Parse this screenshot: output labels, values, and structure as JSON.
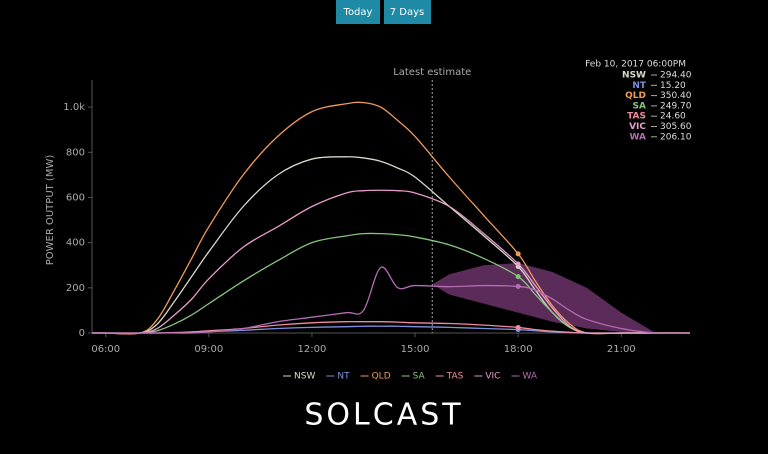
{
  "ui": {
    "buttons": [
      "Today",
      "7 Days"
    ],
    "logo": "SOLCAST"
  },
  "chart_data": {
    "type": "line",
    "y_label": "POWER OUTPUT (MW)",
    "annotation": {
      "x": 15.5,
      "label": "Latest estimate"
    },
    "x": [
      5.6,
      6,
      7,
      7.5,
      8,
      8.5,
      9,
      10,
      11,
      12,
      13,
      13.5,
      14,
      14.5,
      15,
      16,
      17,
      18,
      18.5,
      19,
      19.5,
      20,
      21,
      22,
      23
    ],
    "xlim": [
      5.6,
      23
    ],
    "xticks": [
      {
        "value": 6,
        "label": "06:00"
      },
      {
        "value": 9,
        "label": "09:00"
      },
      {
        "value": 12,
        "label": "12:00"
      },
      {
        "value": 15,
        "label": "15:00"
      },
      {
        "value": 18,
        "label": "18:00"
      },
      {
        "value": 21,
        "label": "21:00"
      }
    ],
    "ylim": [
      0,
      1120
    ],
    "yticks": [
      0,
      200,
      400,
      600,
      800,
      {
        "value": 1000,
        "label": "1.0k"
      }
    ],
    "series": [
      {
        "name": "NSW",
        "color": "#d8d8c8",
        "values": [
          0,
          0,
          0,
          40,
          140,
          250,
          360,
          560,
          700,
          770,
          780,
          775,
          760,
          730,
          690,
          560,
          430,
          294.4,
          190,
          90,
          25,
          0,
          0,
          0,
          0
        ]
      },
      {
        "name": "NT",
        "color": "#7f8fe0",
        "values": [
          0,
          0,
          0,
          0,
          1,
          3,
          6,
          12,
          20,
          25,
          28,
          30,
          30,
          30,
          28,
          25,
          20,
          15.2,
          10,
          5,
          2,
          0,
          0,
          0,
          0
        ]
      },
      {
        "name": "QLD",
        "color": "#f09a5a",
        "values": [
          0,
          0,
          0,
          60,
          190,
          330,
          470,
          700,
          870,
          980,
          1015,
          1020,
          1000,
          940,
          870,
          690,
          520,
          350.4,
          230,
          120,
          40,
          0,
          0,
          0,
          0
        ]
      },
      {
        "name": "SA",
        "color": "#86c47e",
        "values": [
          0,
          0,
          0,
          10,
          40,
          80,
          130,
          230,
          320,
          400,
          430,
          440,
          440,
          435,
          425,
          390,
          330,
          249.7,
          170,
          90,
          25,
          0,
          0,
          0,
          0
        ]
      },
      {
        "name": "TAS",
        "color": "#f08aa0",
        "values": [
          0,
          0,
          0,
          0,
          2,
          5,
          10,
          20,
          35,
          45,
          50,
          50,
          50,
          48,
          45,
          42,
          35,
          24.6,
          15,
          8,
          3,
          0,
          0,
          0,
          0
        ]
      },
      {
        "name": "VIC",
        "color": "#e79ccc",
        "values": [
          0,
          0,
          0,
          20,
          80,
          150,
          240,
          380,
          470,
          560,
          620,
          630,
          632,
          630,
          620,
          560,
          440,
          305.6,
          210,
          110,
          30,
          0,
          0,
          0,
          0
        ]
      },
      {
        "name": "WA",
        "color": "#b46cb4",
        "values": [
          0,
          0,
          0,
          0,
          0,
          0,
          5,
          20,
          50,
          70,
          90,
          100,
          290,
          200,
          210,
          205,
          210,
          206.1,
          190,
          150,
          100,
          60,
          20,
          0,
          0
        ]
      }
    ],
    "band": {
      "color": "#7a3a78",
      "x": [
        15.5,
        16,
        17,
        18,
        19,
        20,
        21,
        22
      ],
      "low": [
        215,
        170,
        130,
        90,
        50,
        20,
        5,
        0
      ],
      "high": [
        215,
        260,
        300,
        310,
        270,
        200,
        90,
        0
      ]
    },
    "tooltip": {
      "title": "Feb 10, 2017 06:00PM",
      "x": 18,
      "values": [
        294.4,
        15.2,
        350.4,
        249.7,
        24.6,
        305.6,
        206.1
      ],
      "value_labels": [
        "294.40",
        "15.20",
        "350.40",
        "249.70",
        "24.60",
        "305.60",
        "206.10"
      ]
    }
  }
}
